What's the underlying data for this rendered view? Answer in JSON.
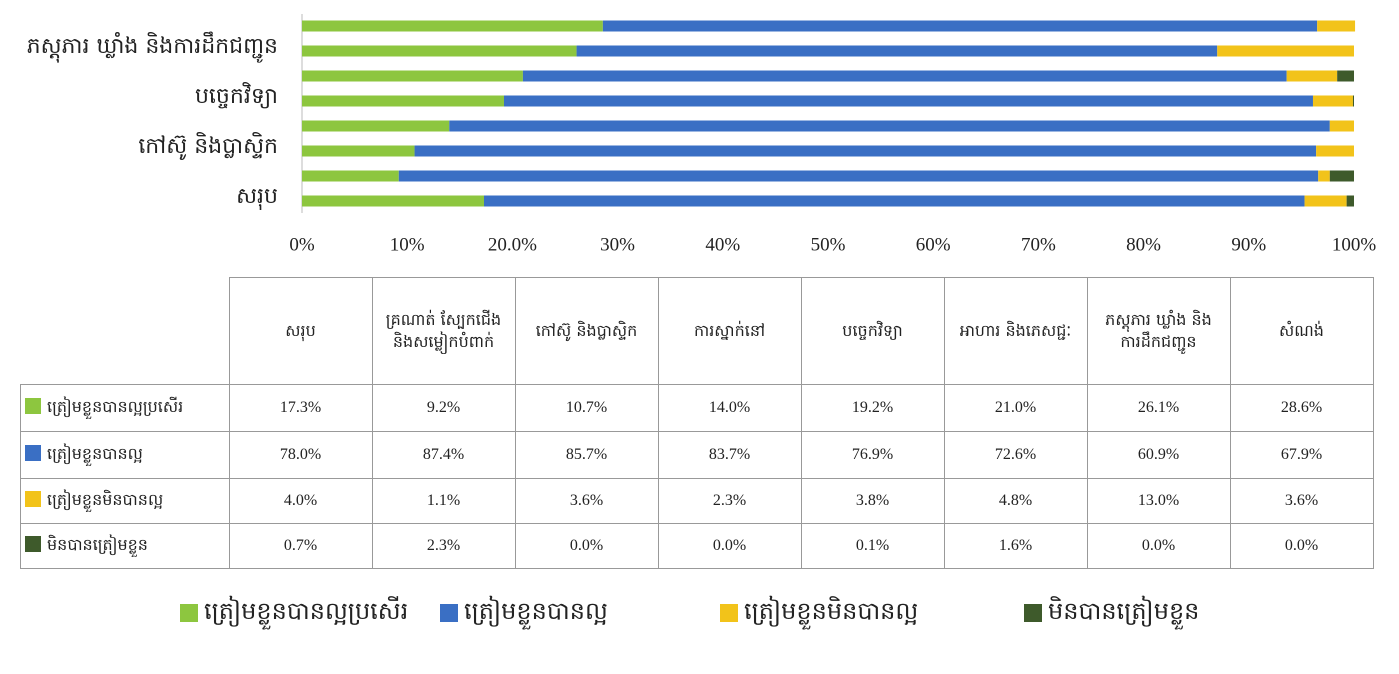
{
  "chart_data": {
    "type": "stacked-bar-horizontal",
    "categories": [
      "សរុប",
      "គ្រណាត់ ស្បែកជើង និងសម្លៀកបំពាក់",
      "កៅស៊ូ និងប្លាស្ទិក",
      "ការស្នាក់នៅ",
      "បច្ចេកវិទ្យា",
      "អាហារ និងភេសជ្ជៈ",
      "ភស្តុភារ ឃ្លាំង និងការដឹកជញ្ជូន",
      "សំណង់"
    ],
    "series": [
      {
        "name": "ត្រៀមខ្លួនបានល្អប្រសើរ",
        "color": "#8dc63f",
        "values": [
          17.3,
          9.2,
          10.7,
          14.0,
          19.2,
          21.0,
          26.1,
          28.6
        ],
        "value_labels": [
          "17.3%",
          "9.2%",
          "10.7%",
          "14.0%",
          "19.2%",
          "21.0%",
          "26.1%",
          "28.6%"
        ]
      },
      {
        "name": "ត្រៀមខ្លួនបានល្អ",
        "color": "#3a6fc4",
        "values": [
          78.0,
          87.4,
          85.7,
          83.7,
          76.9,
          72.6,
          60.9,
          67.9
        ],
        "value_labels": [
          "78.0%",
          "87.4%",
          "85.7%",
          "83.7%",
          "76.9%",
          "72.6%",
          "60.9%",
          "67.9%"
        ]
      },
      {
        "name": "ត្រៀមខ្លួនមិនបានល្អ",
        "color": "#f2c31a",
        "values": [
          4.0,
          1.1,
          3.6,
          2.3,
          3.8,
          4.8,
          13.0,
          3.6
        ],
        "value_labels": [
          "4.0%",
          "1.1%",
          "3.6%",
          "2.3%",
          "3.8%",
          "4.8%",
          "13.0%",
          "3.6%"
        ]
      },
      {
        "name": "មិនបានត្រៀមខ្លួន",
        "color": "#3e5a2b",
        "values": [
          0.7,
          2.3,
          0.0,
          0.0,
          0.1,
          1.6,
          0.0,
          0.0
        ],
        "value_labels": [
          "0.7%",
          "2.3%",
          "0.0%",
          "0.0%",
          "0.1%",
          "1.6%",
          "0.0%",
          "0.0%"
        ]
      }
    ],
    "xlim": [
      0,
      100
    ],
    "xticks": [
      {
        "value": 0,
        "label": "0%"
      },
      {
        "value": 10,
        "label": "10%"
      },
      {
        "value": 20,
        "label": "20.0%"
      },
      {
        "value": 30,
        "label": "30%"
      },
      {
        "value": 40,
        "label": "40%"
      },
      {
        "value": 50,
        "label": "50%"
      },
      {
        "value": 60,
        "label": "60%"
      },
      {
        "value": 70,
        "label": "70%"
      },
      {
        "value": 80,
        "label": "80%"
      },
      {
        "value": 90,
        "label": "90%"
      },
      {
        "value": 100,
        "label": "100%"
      }
    ]
  }
}
